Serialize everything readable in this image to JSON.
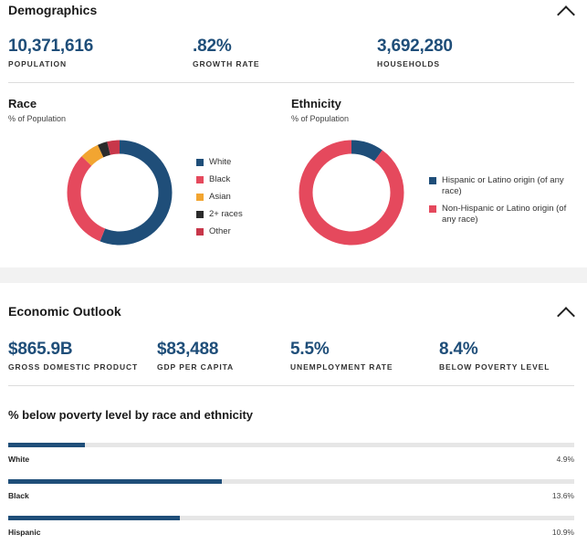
{
  "demographics": {
    "title": "Demographics",
    "stats": [
      {
        "value": "10,371,616",
        "label": "POPULATION"
      },
      {
        "value": ".82%",
        "label": "GROWTH RATE"
      },
      {
        "value": "3,692,280",
        "label": "HOUSEHOLDS"
      }
    ],
    "race": {
      "title": "Race",
      "subtitle": "% of Population",
      "legend": [
        {
          "label": "White",
          "color": "#1f4e79"
        },
        {
          "label": "Black",
          "color": "#e5495d"
        },
        {
          "label": "Asian",
          "color": "#f2a531"
        },
        {
          "label": "2+ races",
          "color": "#2b2b2b"
        },
        {
          "label": "Other",
          "color": "#c8374a"
        }
      ]
    },
    "ethnicity": {
      "title": "Ethnicity",
      "subtitle": "% of Population",
      "legend": [
        {
          "label": "Hispanic or Latino origin (of any race)",
          "color": "#1f4e79"
        },
        {
          "label": "Non-Hispanic or Latino origin (of any race)",
          "color": "#e5495d"
        }
      ]
    }
  },
  "economic": {
    "title": "Economic Outlook",
    "stats": [
      {
        "value": "$865.9B",
        "label": "GROSS DOMESTIC PRODUCT"
      },
      {
        "value": "$83,488",
        "label": "GDP PER CAPITA"
      },
      {
        "value": "5.5%",
        "label": "UNEMPLOYMENT RATE"
      },
      {
        "value": "8.4%",
        "label": "BELOW POVERTY LEVEL"
      }
    ],
    "poverty": {
      "title": "% below poverty level by race and ethnicity",
      "rows": [
        {
          "label": "White",
          "value": "4.9%",
          "pct": 4.9
        },
        {
          "label": "Black",
          "value": "13.6%",
          "pct": 13.6
        },
        {
          "label": "Hispanic",
          "value": "10.9%",
          "pct": 10.9
        }
      ]
    }
  },
  "chart_data": [
    {
      "type": "pie",
      "variant": "donut",
      "categories": [
        "White",
        "Black",
        "Asian",
        "2+ races",
        "Other"
      ],
      "values": [
        56,
        31,
        6,
        3,
        4
      ],
      "colors": [
        "#1f4e79",
        "#e5495d",
        "#f2a531",
        "#2b2b2b",
        "#c8374a"
      ]
    },
    {
      "type": "pie",
      "variant": "donut",
      "categories": [
        "Hispanic or Latino origin (of any race)",
        "Non-Hispanic or Latino origin (of any race)"
      ],
      "values": [
        10,
        90
      ],
      "colors": [
        "#1f4e79",
        "#e5495d"
      ]
    }
  ]
}
